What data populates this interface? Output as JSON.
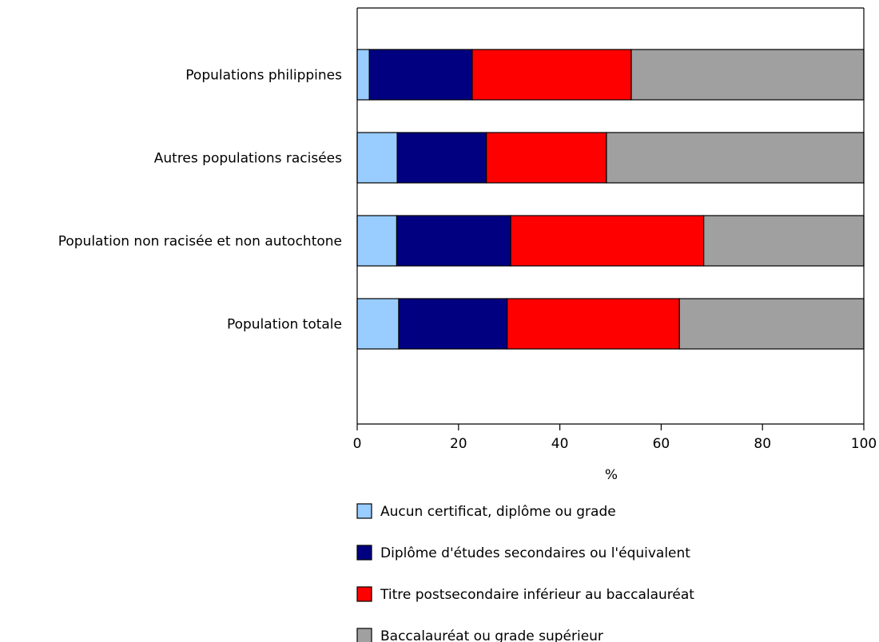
{
  "chart_data": {
    "type": "bar",
    "orientation": "horizontal",
    "stacked": true,
    "categories": [
      "Populations philippines",
      "Autres populations racisées",
      "Population non racisée et non autochtone",
      "Population totale"
    ],
    "series": [
      {
        "name": "Aucun certificat, diplôme ou grade",
        "color": "#99ccff",
        "values": [
          2.4,
          7.9,
          7.8,
          8.2
        ]
      },
      {
        "name": "Diplôme d'études secondaires ou l'équivalent",
        "color": "#000080",
        "values": [
          20.3,
          17.6,
          22.5,
          21.4
        ]
      },
      {
        "name": "Titre postsecondaire inférieur au baccalauréat",
        "color": "#ff0000",
        "values": [
          31.4,
          23.7,
          38.1,
          34.0
        ]
      },
      {
        "name": "Baccalauréat ou grade supérieur",
        "color": "#a0a0a0",
        "values": [
          45.9,
          50.8,
          31.6,
          36.4
        ]
      }
    ],
    "xlabel": "%",
    "ylabel": "",
    "xlim": [
      0,
      100
    ],
    "xticks": [
      "0",
      "20",
      "40",
      "60",
      "80",
      "100"
    ],
    "grid": false,
    "legend_position": "bottom"
  }
}
